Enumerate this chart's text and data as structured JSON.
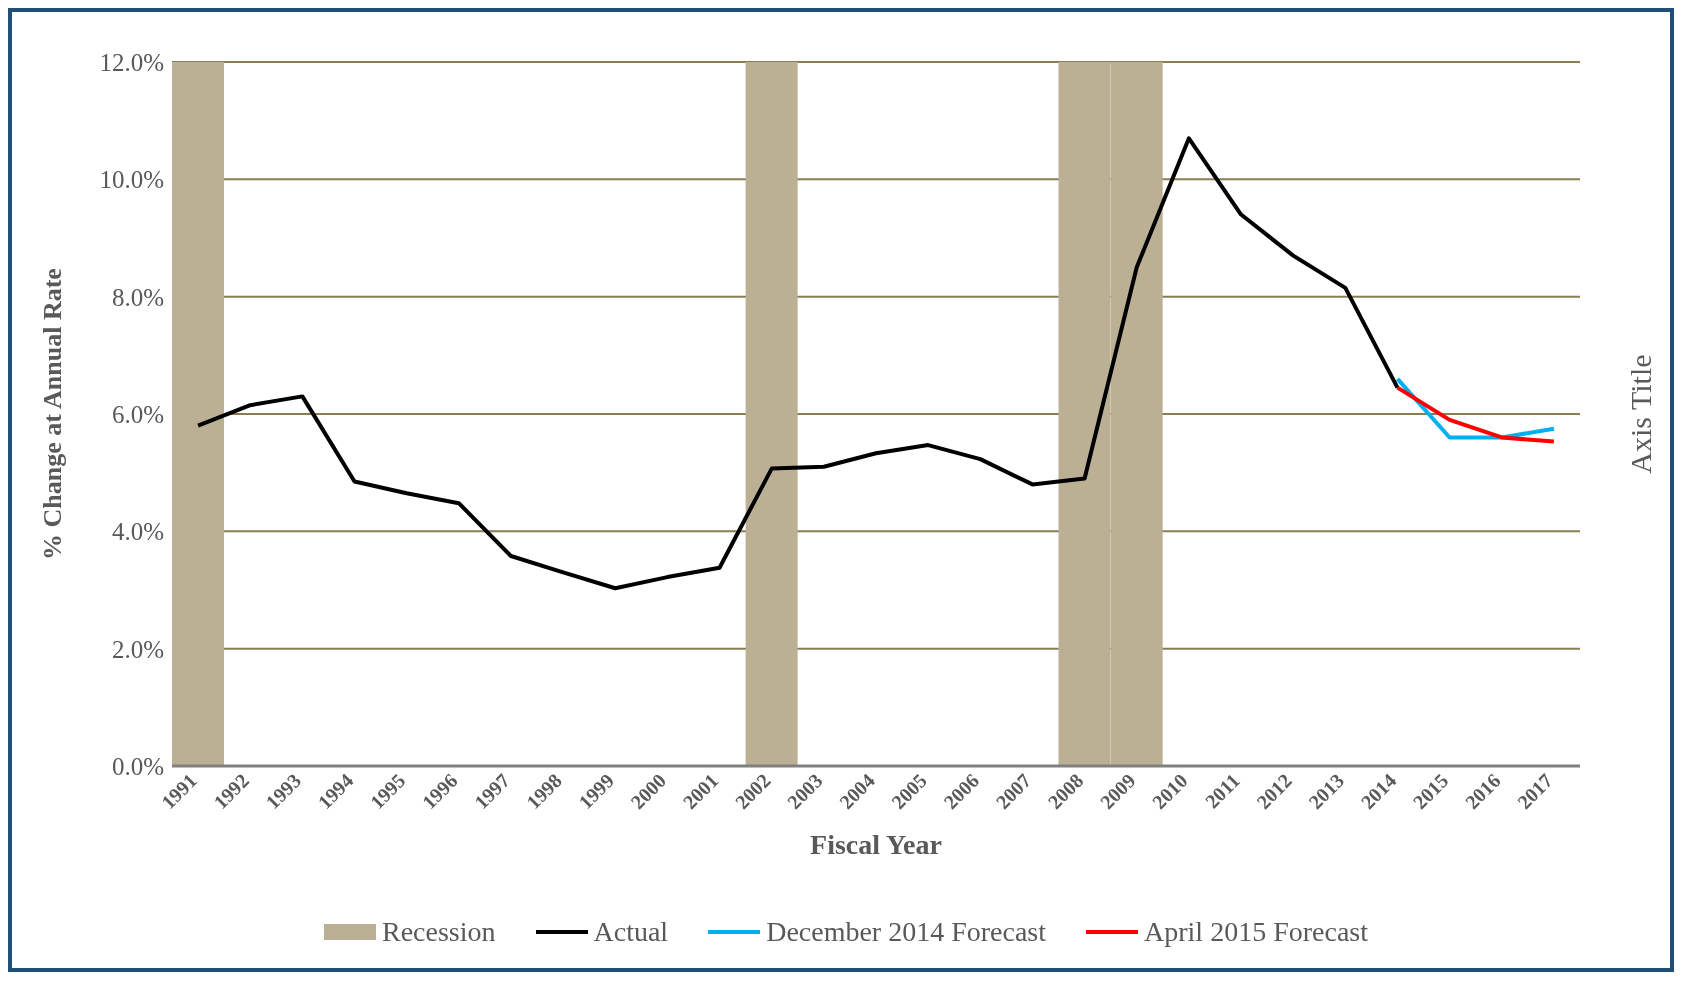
{
  "chart_data": {
    "type": "line",
    "xlabel": "Fiscal Year",
    "ylabel": "% Change at Annual Rate",
    "y2label": "Axis Title",
    "categories": [
      "1991",
      "1992",
      "1993",
      "1994",
      "1995",
      "1996",
      "1997",
      "1998",
      "1999",
      "2000",
      "2001",
      "2002",
      "2003",
      "2004",
      "2005",
      "2006",
      "2007",
      "2008",
      "2009",
      "2010",
      "2011",
      "2012",
      "2013",
      "2014",
      "2015",
      "2016",
      "2017"
    ],
    "series": [
      {
        "name": "Recession",
        "type": "bar",
        "color": "#bcb094",
        "values": [
          12,
          null,
          null,
          null,
          null,
          null,
          null,
          null,
          null,
          null,
          null,
          12,
          null,
          null,
          null,
          null,
          null,
          12,
          12,
          null,
          null,
          null,
          null,
          null,
          null,
          null,
          null
        ]
      },
      {
        "name": "Actual",
        "color": "#000000",
        "values": [
          5.8,
          6.15,
          6.3,
          4.85,
          4.65,
          4.48,
          3.58,
          3.3,
          3.03,
          3.22,
          3.38,
          5.07,
          5.1,
          5.33,
          5.47,
          5.23,
          4.8,
          4.9,
          8.5,
          10.7,
          9.4,
          8.7,
          8.15,
          6.45,
          null,
          null,
          null
        ]
      },
      {
        "name": "December 2014 Forecast",
        "color": "#00b0f0",
        "values": [
          null,
          null,
          null,
          null,
          null,
          null,
          null,
          null,
          null,
          null,
          null,
          null,
          null,
          null,
          null,
          null,
          null,
          null,
          null,
          null,
          null,
          null,
          null,
          6.6,
          5.6,
          5.6,
          5.75
        ]
      },
      {
        "name": "April 2015 Forecast",
        "color": "#ff0000",
        "values": [
          null,
          null,
          null,
          null,
          null,
          null,
          null,
          null,
          null,
          null,
          null,
          null,
          null,
          null,
          null,
          null,
          null,
          null,
          null,
          null,
          null,
          null,
          null,
          6.45,
          5.9,
          5.6,
          5.53
        ]
      }
    ],
    "ylim": [
      0,
      12
    ],
    "yticks": [
      {
        "value": 0,
        "label": "0.0%"
      },
      {
        "value": 2,
        "label": "2.0%"
      },
      {
        "value": 4,
        "label": "4.0%"
      },
      {
        "value": 6,
        "label": "6.0%"
      },
      {
        "value": 8,
        "label": "8.0%"
      },
      {
        "value": 10,
        "label": "10.0%"
      },
      {
        "value": 12,
        "label": "12.0%"
      }
    ],
    "grid": "y",
    "legend": "bottom",
    "marker": "none",
    "line_style": "solid"
  }
}
